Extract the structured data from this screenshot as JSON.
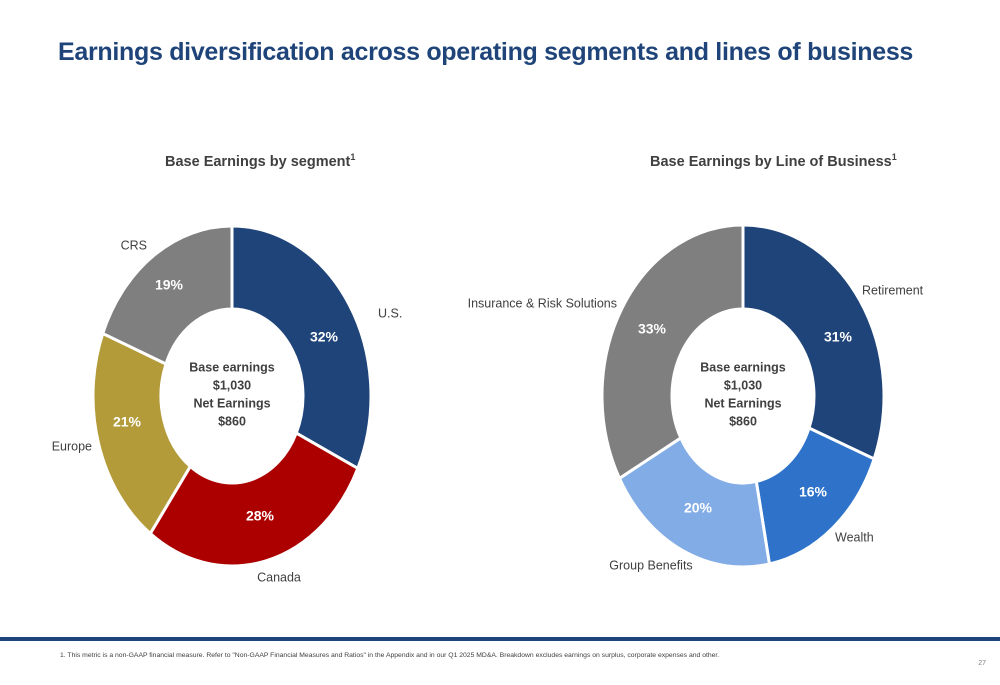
{
  "title": "Earnings diversification across operating segments and lines of business",
  "chart_data": [
    {
      "type": "pie",
      "title": "Base Earnings by segment",
      "title_superscript": "1",
      "center_lines": [
        "Base earnings",
        "$1,030",
        "Net Earnings",
        "$860"
      ],
      "slices": [
        {
          "label": "U.S.",
          "value": 32,
          "value_label": "32%",
          "color": "#1f4479"
        },
        {
          "label": "Canada",
          "value": 28,
          "value_label": "28%",
          "color": "#ac0000"
        },
        {
          "label": "Europe",
          "value": 21,
          "value_label": "21%",
          "color": "#b39b3a"
        },
        {
          "label": "CRS",
          "value": 19,
          "value_label": "19%",
          "color": "#7f7f7f"
        }
      ]
    },
    {
      "type": "pie",
      "title": "Base Earnings by Line of Business",
      "title_superscript": "1",
      "center_lines": [
        "Base earnings",
        "$1,030",
        "Net Earnings",
        "$860"
      ],
      "slices": [
        {
          "label": "Retirement",
          "value": 31,
          "value_label": "31%",
          "color": "#1f4479"
        },
        {
          "label": "Wealth",
          "value": 16,
          "value_label": "16%",
          "color": "#2e72c9"
        },
        {
          "label": "Group Benefits",
          "value": 20,
          "value_label": "20%",
          "color": "#82ace6"
        },
        {
          "label": "Insurance & Risk Solutions",
          "value": 33,
          "value_label": "33%",
          "color": "#7f7f7f"
        }
      ]
    }
  ],
  "footnote": "1. This metric is a non-GAAP financial measure. Refer to \"Non-GAAP Financial Measures and Ratios\" in the Appendix and in our Q1 2025 MD&A. Breakdown excludes earnings on surplus, corporate expenses and other.",
  "page_number": "27"
}
